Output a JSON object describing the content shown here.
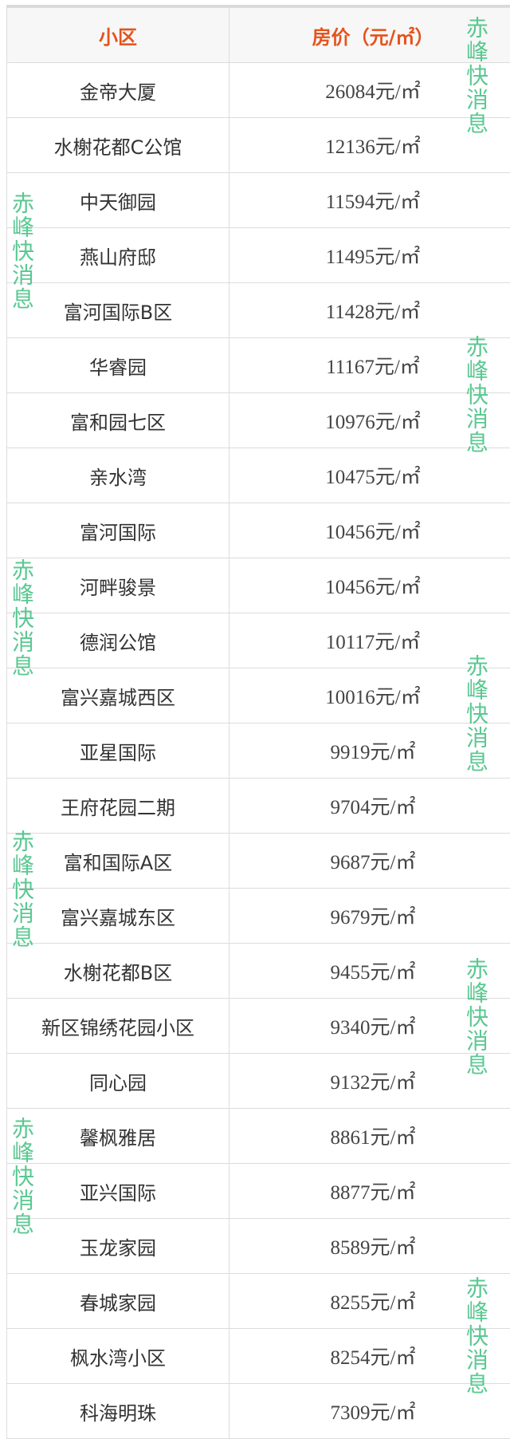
{
  "header": {
    "name_col": "小区",
    "price_col": "房价（元/㎡）"
  },
  "rows": [
    {
      "name": "金帝大厦",
      "price": "26084元/㎡"
    },
    {
      "name": "水榭花都C公馆",
      "price": "12136元/㎡"
    },
    {
      "name": "中天御园",
      "price": "11594元/㎡"
    },
    {
      "name": "燕山府邸",
      "price": "11495元/㎡"
    },
    {
      "name": "富河国际B区",
      "price": "11428元/㎡"
    },
    {
      "name": "华睿园",
      "price": "11167元/㎡"
    },
    {
      "name": "富和园七区",
      "price": "10976元/㎡"
    },
    {
      "name": "亲水湾",
      "price": "10475元/㎡"
    },
    {
      "name": "富河国际",
      "price": "10456元/㎡"
    },
    {
      "name": "河畔骏景",
      "price": "10456元/㎡"
    },
    {
      "name": "德润公馆",
      "price": "10117元/㎡"
    },
    {
      "name": "富兴嘉城西区",
      "price": "10016元/㎡"
    },
    {
      "name": "亚星国际",
      "price": "9919元/㎡"
    },
    {
      "name": "王府花园二期",
      "price": "9704元/㎡"
    },
    {
      "name": "富和国际A区",
      "price": "9687元/㎡"
    },
    {
      "name": "富兴嘉城东区",
      "price": "9679元/㎡"
    },
    {
      "name": "水榭花都B区",
      "price": "9455元/㎡"
    },
    {
      "name": "新区锦绣花园小区",
      "price": "9340元/㎡"
    },
    {
      "name": "同心园",
      "price": "9132元/㎡"
    },
    {
      "name": "馨枫雅居",
      "price": "8861元/㎡"
    },
    {
      "name": "亚兴国际",
      "price": "8877元/㎡"
    },
    {
      "name": "玉龙家园",
      "price": "8589元/㎡"
    },
    {
      "name": "春城家园",
      "price": "8255元/㎡"
    },
    {
      "name": "枫水湾小区",
      "price": "8254元/㎡"
    },
    {
      "name": "科海明珠",
      "price": "7309元/㎡"
    }
  ],
  "watermark": "赤峰快消息",
  "colors": {
    "header_text": "#e5531c",
    "watermark": "#3fbf7f"
  }
}
